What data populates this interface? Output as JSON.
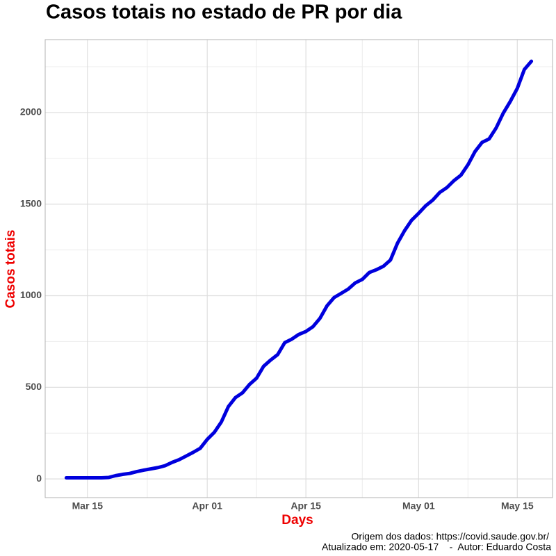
{
  "chart_data": {
    "type": "line",
    "title": "Casos totais no estado de PR por dia",
    "x_label": "Days",
    "y_label": "Casos totais",
    "caption": [
      "Origem dos dados: https://covid.saude.gov.br/",
      "Atualizado em: 2020-05-17    -  Autor: Eduardo Costa"
    ],
    "x": [
      "Mar 12",
      "Mar 13",
      "Mar 14",
      "Mar 15",
      "Mar 16",
      "Mar 17",
      "Mar 18",
      "Mar 19",
      "Mar 20",
      "Mar 21",
      "Mar 22",
      "Mar 23",
      "Mar 24",
      "Mar 25",
      "Mar 26",
      "Mar 27",
      "Mar 28",
      "Mar 29",
      "Mar 30",
      "Mar 31",
      "Apr 01",
      "Apr 02",
      "Apr 03",
      "Apr 04",
      "Apr 05",
      "Apr 06",
      "Apr 07",
      "Apr 08",
      "Apr 09",
      "Apr 10",
      "Apr 11",
      "Apr 12",
      "Apr 13",
      "Apr 14",
      "Apr 15",
      "Apr 16",
      "Apr 17",
      "Apr 18",
      "Apr 19",
      "Apr 20",
      "Apr 21",
      "Apr 22",
      "Apr 23",
      "Apr 24",
      "Apr 25",
      "Apr 26",
      "Apr 27",
      "Apr 28",
      "Apr 29",
      "Apr 30",
      "May 01",
      "May 02",
      "May 03",
      "May 04",
      "May 05",
      "May 06",
      "May 07",
      "May 08",
      "May 09",
      "May 10",
      "May 11",
      "May 12",
      "May 13",
      "May 14",
      "May 15",
      "May 16",
      "May 17"
    ],
    "series": [
      {
        "name": "Casos totais",
        "color": "#0000dd",
        "values": [
          6,
          6,
          6,
          6,
          6,
          6,
          8,
          18,
          25,
          30,
          40,
          48,
          55,
          62,
          72,
          90,
          105,
          125,
          145,
          167,
          216,
          254,
          311,
          395,
          444,
          470,
          516,
          550,
          615,
          649,
          679,
          744,
          763,
          789,
          805,
          831,
          877,
          945,
          990,
          1013,
          1036,
          1070,
          1089,
          1127,
          1142,
          1161,
          1195,
          1287,
          1355,
          1412,
          1450,
          1491,
          1522,
          1564,
          1590,
          1628,
          1658,
          1715,
          1787,
          1837,
          1856,
          1916,
          1996,
          2060,
          2132,
          2235,
          2280
        ]
      }
    ],
    "xlim": [
      "Mar 09",
      "May 20"
    ],
    "xticks": [
      "Mar 15",
      "Apr 01",
      "Apr 15",
      "May 01",
      "May 15"
    ],
    "ylim": [
      -102,
      2398
    ],
    "yticks": [
      0,
      500,
      1000,
      1500,
      2000
    ],
    "grid": true
  }
}
